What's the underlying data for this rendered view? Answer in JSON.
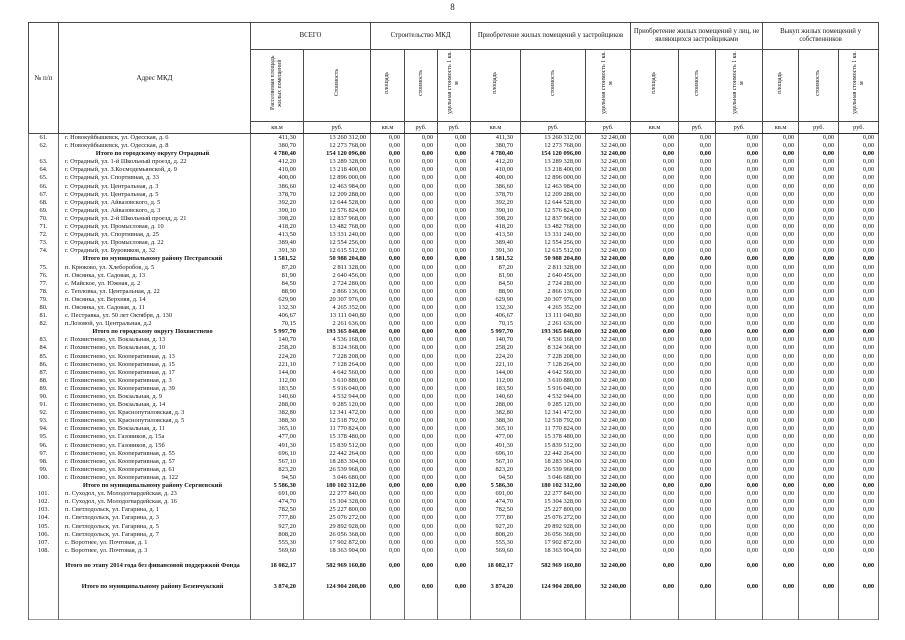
{
  "page": {
    "number": "8"
  },
  "table": {
    "header": {
      "col_num": "№ п/п",
      "col_address": "Адрес МКД",
      "groups": [
        {
          "label": "ВСЕГО",
          "cols": [
            "Расселяемая площадь жилых помещений",
            "Стоимость"
          ]
        },
        {
          "label": "Строительство МКД",
          "cols": [
            "площадь",
            "стоимость",
            "удельная стоимость 1 кв. м"
          ]
        },
        {
          "label": "Приобретение жилых помещений у застройщиков",
          "cols": [
            "площадь",
            "стоимость",
            "удельная стоимость 1 кв. м"
          ]
        },
        {
          "label": "Приобретение жилых помещений у лиц, не являющихся застройщиками",
          "cols": [
            "площадь",
            "стоимость",
            "удельная стоимость 1 кв. м"
          ]
        },
        {
          "label": "Выкуп жилых помещений у собственников",
          "cols": [
            "площадь",
            "стоимость",
            "удельная стоимость 1 кв. м"
          ]
        }
      ],
      "units": [
        "кв.м",
        "руб.",
        "кв.м",
        "руб.",
        "руб.",
        "кв.м",
        "руб.",
        "руб.",
        "кв.м",
        "руб.",
        "руб.",
        "кв.м",
        "руб.",
        "руб."
      ]
    },
    "constants": {
      "zero": "0,00",
      "unit_cost": "32 240,00"
    },
    "rows": [
      {
        "num": "61.",
        "address": "г. Новокуйбышевск, ул. Одесская, д. 6",
        "area": "411,30",
        "cost": "13 260 312,00",
        "type": "item"
      },
      {
        "num": "62.",
        "address": "г. Новокуйбышевск, ул. Одесская, д. 8",
        "area": "380,70",
        "cost": "12 273 768,00",
        "type": "item"
      },
      {
        "num": "",
        "address": "Итого по городскому округу Отрадный",
        "area": "4 780,40",
        "cost": "154 120 096,00",
        "type": "subtotal"
      },
      {
        "num": "63.",
        "address": "г. Отрадный, ул. 1-й Школьный проезд, д. 22",
        "area": "412,20",
        "cost": "13 289 328,00",
        "type": "item"
      },
      {
        "num": "64.",
        "address": "г. Отрадный, ул. З.Космодемьянской, д. 9",
        "area": "410,00",
        "cost": "13 218 400,00",
        "type": "item"
      },
      {
        "num": "65.",
        "address": "г. Отрадный, ул. Спортивная, д. 33",
        "area": "400,00",
        "cost": "12 896 000,00",
        "type": "item"
      },
      {
        "num": "66.",
        "address": "г. Отрадный, ул. Центральная, д. 3",
        "area": "386,60",
        "cost": "12 463 984,00",
        "type": "item"
      },
      {
        "num": "67.",
        "address": "г. Отрадный, ул. Центральная, д. 5",
        "area": "378,70",
        "cost": "12 209 288,00",
        "type": "item"
      },
      {
        "num": "68.",
        "address": "г. Отрадный, ул. Айвазовского, д. 5",
        "area": "392,20",
        "cost": "12 644 528,00",
        "type": "item"
      },
      {
        "num": "69.",
        "address": "г. Отрадный, ул. Айвазовского, д. 3",
        "area": "390,10",
        "cost": "12 576 824,00",
        "type": "item"
      },
      {
        "num": "70.",
        "address": "г. Отрадный, ул. 2-й Школьный проезд, д. 21",
        "area": "398,20",
        "cost": "12 837 968,00",
        "type": "item"
      },
      {
        "num": "71.",
        "address": "г. Отрадный, ул. Промысловая, д. 10",
        "area": "418,20",
        "cost": "13 482 768,00",
        "type": "item"
      },
      {
        "num": "72.",
        "address": "г. Отрадный, ул. Спортивная, д. 25",
        "area": "413,50",
        "cost": "13 331 240,00",
        "type": "item"
      },
      {
        "num": "73.",
        "address": "г. Отрадный, ул. Промысловая, д. 22",
        "area": "389,40",
        "cost": "12 554 256,00",
        "type": "item"
      },
      {
        "num": "74.",
        "address": "г. Отрадный, ул. Буровиков, д. 32",
        "area": "391,30",
        "cost": "12 615 512,00",
        "type": "item"
      },
      {
        "num": "",
        "address": "Итого по муниципальному району Пестравский",
        "area": "1 581,52",
        "cost": "50 988 204,80",
        "type": "subtotal"
      },
      {
        "num": "75.",
        "address": "п. Крюково, ул. Хлеборобов, д. 5",
        "area": "87,20",
        "cost": "2 811 328,00",
        "type": "item"
      },
      {
        "num": "76.",
        "address": "п. Овсянка, ул. Садовая, д. 13",
        "area": "81,90",
        "cost": "2 640 456,00",
        "type": "item"
      },
      {
        "num": "77.",
        "address": "с. Майское, ул. Южная, д. 2",
        "area": "84,50",
        "cost": "2 724 280,00",
        "type": "item"
      },
      {
        "num": "78.",
        "address": "с. Тепловка, ул. Центральная, д. 22",
        "area": "88,90",
        "cost": "2 866 136,00",
        "type": "item"
      },
      {
        "num": "79.",
        "address": "п. Овсянка, ул. Верхняя, д. 14",
        "area": "629,90",
        "cost": "20 307 976,00",
        "type": "item"
      },
      {
        "num": "80.",
        "address": "п. Овсянка, ул. Садовая, д. 11",
        "area": "132,30",
        "cost": "4 265 352,00",
        "type": "item"
      },
      {
        "num": "81.",
        "address": "с. Пестравка, ул. 50 лет Октября, д. 130",
        "area": "406,67",
        "cost": "13 111 040,80",
        "type": "item"
      },
      {
        "num": "82.",
        "address": "п.Лозовой, ул. Центральная, д.2",
        "area": "70,15",
        "cost": "2 261 636,00",
        "type": "item"
      },
      {
        "num": "",
        "address": "Итого по городскому округу  Похвистнево",
        "area": "5 997,70",
        "cost": "193 365 848,00",
        "type": "subtotal"
      },
      {
        "num": "83.",
        "address": "г. Похвистнево, ул.  Вокзальная, д. 13",
        "area": "140,70",
        "cost": "4 536 168,00",
        "type": "item"
      },
      {
        "num": "84.",
        "address": "г. Похвистнево, ул.  Вокзальная, д. 10",
        "area": "258,20",
        "cost": "8 324 368,00",
        "type": "item"
      },
      {
        "num": "85.",
        "address": "г. Похвистнево, ул.  Кооперативная, д. 13",
        "area": "224,20",
        "cost": "7 228 208,00",
        "type": "item"
      },
      {
        "num": "86.",
        "address": "г. Похвистнево, ул.  Кооперативная, д. 15",
        "area": "221,10",
        "cost": "7 128 264,00",
        "type": "item"
      },
      {
        "num": "87.",
        "address": "г. Похвистнево, ул. Кооперативная, д. 17",
        "area": "144,00",
        "cost": "4 642 560,00",
        "type": "item"
      },
      {
        "num": "88.",
        "address": "г. Похвистнево, ул.  Кооперативная, д. 3",
        "area": "112,00",
        "cost": "3 610 880,00",
        "type": "item"
      },
      {
        "num": "89.",
        "address": "г. Похвистнево, ул.  Кооперативная, д. 39",
        "area": "183,50",
        "cost": "5 916 040,00",
        "type": "item"
      },
      {
        "num": "90.",
        "address": "г. Похвистнево, ул.  Вокзальная, д.  9",
        "area": "140,60",
        "cost": "4 532 944,00",
        "type": "item"
      },
      {
        "num": "91.",
        "address": "г. Похвистнево, ул.  Вокзальная, д. 14",
        "area": "288,00",
        "cost": "9 285 120,00",
        "type": "item"
      },
      {
        "num": "92.",
        "address": "г. Похвистнево, ул.  Краснопутиловская, д. 3",
        "area": "382,80",
        "cost": "12 341 472,00",
        "type": "item"
      },
      {
        "num": "93.",
        "address": "г. Похвистнево, ул.  Краснопутиловская, д. 5",
        "area": "388,30",
        "cost": "12 518 792,00",
        "type": "item"
      },
      {
        "num": "94.",
        "address": "г. Похвистнево, ул.  Вокзальная, д. 11",
        "area": "365,10",
        "cost": "11 770 824,00",
        "type": "item"
      },
      {
        "num": "95.",
        "address": "г. Похвистнево, ул.  Газовиков, д. 15а",
        "area": "477,00",
        "cost": "15 378 480,00",
        "type": "item"
      },
      {
        "num": "96.",
        "address": "г. Похвистнево, ул.  Газовиков, д. 15б",
        "area": "491,30",
        "cost": "15 839 512,00",
        "type": "item"
      },
      {
        "num": "97.",
        "address": "г. Похвистнево, ул.  Кооперативная, д. 55",
        "area": "696,10",
        "cost": "22 442 264,00",
        "type": "item"
      },
      {
        "num": "98.",
        "address": "г. Похвистнево, ул.  Кооперативная, д. 57",
        "area": "567,10",
        "cost": "18 283 304,00",
        "type": "item"
      },
      {
        "num": "99.",
        "address": "г. Похвистнево, ул.  Кооперативная, д. 61",
        "area": "823,20",
        "cost": "26 539 968,00",
        "type": "item"
      },
      {
        "num": "100.",
        "address": "г. Похвистнево, ул.  Кооперативная, д. 122",
        "area": "94,50",
        "cost": "3 046 680,00",
        "type": "item"
      },
      {
        "num": "",
        "address": "Итого по муниципальному району Сергиевский",
        "area": "5 586,30",
        "cost": "180 102 312,00",
        "type": "subtotal"
      },
      {
        "num": "101.",
        "address": "п. Суходол, ул. Молодогвардейская, д. 23",
        "area": "691,00",
        "cost": "22 277 840,00",
        "type": "item"
      },
      {
        "num": "102.",
        "address": "п. Суходол, ул. Молодогвардейская, д. 16",
        "area": "474,70",
        "cost": "15 304 328,00",
        "type": "item"
      },
      {
        "num": "103.",
        "address": "п. Светлодольск, ул. Гагарина, д. 1",
        "area": "782,50",
        "cost": "25 227 800,00",
        "type": "item"
      },
      {
        "num": "104.",
        "address": "п. Светлодольск, ул. Гагарина, д. 3",
        "area": "777,80",
        "cost": "25 076 272,00",
        "type": "item"
      },
      {
        "num": "105.",
        "address": "п. Светлодольск, ул. Гагарина, д. 5",
        "area": "927,20",
        "cost": "29 892 928,00",
        "type": "item"
      },
      {
        "num": "106.",
        "address": "п. Светлодольск, ул. Гагарина, д. 7",
        "area": "808,20",
        "cost": "26 056 368,00",
        "type": "item"
      },
      {
        "num": "107.",
        "address": "с. Воротнее, ул. Почтовая, д. 1",
        "area": "555,30",
        "cost": "17 902 872,00",
        "type": "item"
      },
      {
        "num": "108.",
        "address": "с. Воротнее, ул. Почтовая, д. 3",
        "area": "569,60",
        "cost": "18 363 904,00",
        "type": "item"
      },
      {
        "num": "",
        "address": "Итого по этапу 2014 года без финансовой поддержкой Фонда",
        "area": "18 082,17",
        "cost": "582 969 160,80",
        "type": "grand"
      },
      {
        "num": "",
        "address": "Итого по муниципальному району Безенчукский",
        "area": "3 874,20",
        "cost": "124 904 208,00",
        "type": "grand"
      }
    ]
  }
}
